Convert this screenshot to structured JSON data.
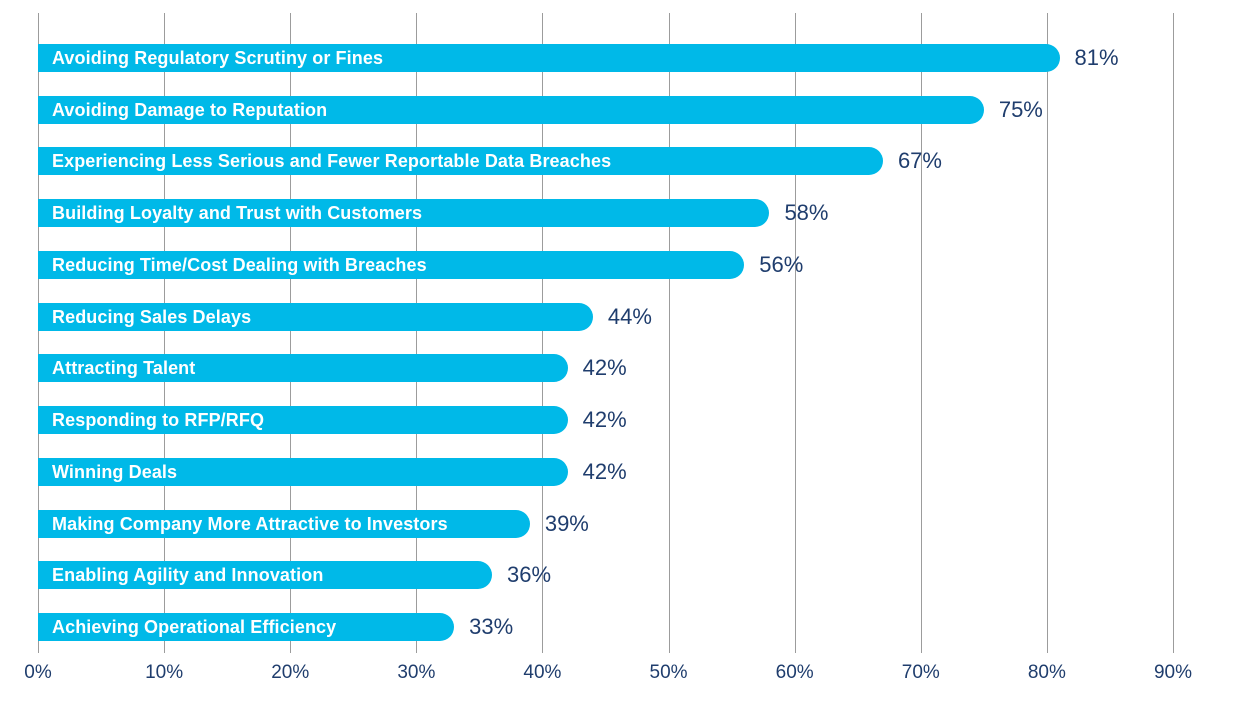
{
  "chart_data": {
    "type": "bar",
    "orientation": "horizontal",
    "title": "",
    "categories": [
      "Avoiding Regulatory Scrutiny or Fines",
      "Avoiding Damage to Reputation",
      "Experiencing Less Serious and Fewer Reportable Data Breaches",
      "Building Loyalty and Trust with Customers",
      "Reducing Time/Cost Dealing with Breaches",
      "Reducing Sales Delays",
      "Attracting Talent",
      "Responding to RFP/RFQ",
      "Winning Deals",
      "Making Company More Attractive to Investors",
      "Enabling Agility and Innovation",
      "Achieving Operational Efficiency"
    ],
    "values": [
      81,
      75,
      67,
      58,
      56,
      44,
      42,
      42,
      42,
      39,
      36,
      33
    ],
    "value_labels": [
      "81%",
      "75%",
      "67%",
      "58%",
      "56%",
      "44%",
      "42%",
      "42%",
      "42%",
      "39%",
      "36%",
      "33%"
    ],
    "x_ticks": [
      "0%",
      "10%",
      "20%",
      "30%",
      "40%",
      "50%",
      "60%",
      "70%",
      "80%",
      "90%"
    ],
    "xlim": [
      0,
      90
    ],
    "grid": "vertical-only",
    "legend": "none",
    "colors": {
      "bar": "#00B9E8",
      "bar_label_text": "#FFFFFF",
      "value_text": "#1F3D6D",
      "axis_text": "#1F3D6D",
      "gridline": "#9C9C9C",
      "background": "#FFFFFF"
    }
  }
}
